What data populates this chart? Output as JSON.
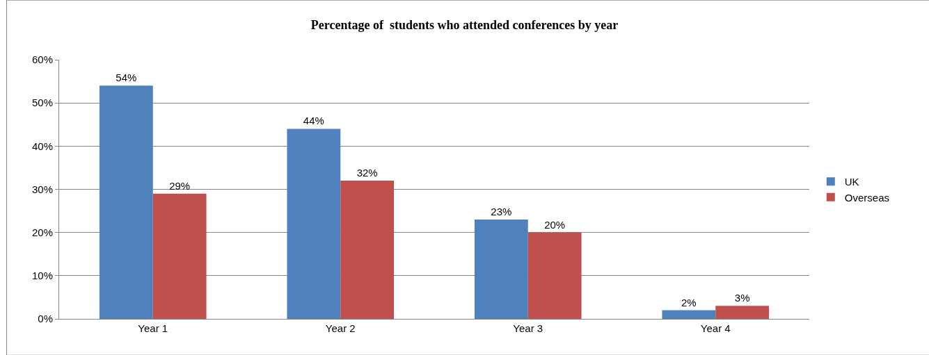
{
  "chart_data": {
    "type": "bar",
    "title": "Percentage of  students who attended conferences by year",
    "categories": [
      "Year 1",
      "Year 2",
      "Year 3",
      "Year 4"
    ],
    "series": [
      {
        "name": "UK",
        "color": "#4f81bd",
        "values": [
          54,
          44,
          23,
          2
        ],
        "value_labels": [
          "54%",
          "44%",
          "23%",
          "2%"
        ]
      },
      {
        "name": "Overseas",
        "color": "#c0504d",
        "values": [
          29,
          32,
          20,
          3
        ],
        "value_labels": [
          "29%",
          "32%",
          "20%",
          "3%"
        ]
      }
    ],
    "ylim": [
      0,
      60
    ],
    "yticks": [
      {
        "value": 0,
        "label": "0%"
      },
      {
        "value": 10,
        "label": "10%"
      },
      {
        "value": 20,
        "label": "20%"
      },
      {
        "value": 30,
        "label": "30%"
      },
      {
        "value": 40,
        "label": "40%"
      },
      {
        "value": 50,
        "label": "50%"
      },
      {
        "value": 60,
        "label": "60%"
      }
    ],
    "grid": "y",
    "legend": "right"
  }
}
